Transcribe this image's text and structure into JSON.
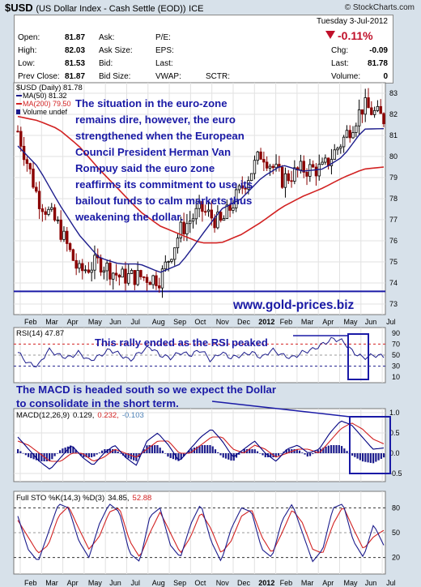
{
  "header": {
    "symbol": "$USD",
    "description": "(US Dollar Index - Cash Settle (EOD))",
    "exchange": "ICE",
    "brand": "© StockCharts.com",
    "date": "Tuesday 3-Jul-2012",
    "change_pct": "-0.11%",
    "quote_labels": {
      "open": "Open:",
      "high": "High:",
      "low": "Low:",
      "prev_close": "Prev Close:",
      "ask": "Ask:",
      "ask_size": "Ask Size:",
      "bid": "Bid:",
      "bid_size": "Bid Size:",
      "pe": "P/E:",
      "eps": "EPS:",
      "last_l": "Last:",
      "vwap": "VWAP:",
      "sctr": "SCTR:",
      "chg": "Chg:",
      "last_r": "Last:",
      "volume": "Volume:"
    },
    "quote_values": {
      "open": "81.87",
      "high": "82.03",
      "low": "81.53",
      "prev_close": "81.87",
      "chg": "-0.09",
      "last": "81.78",
      "volume": "0"
    }
  },
  "legend": {
    "main": "$USD (Daily) 81.78",
    "ma50": "MA(50) 81.32",
    "ma200": "MA(200) 79.50",
    "volume": "Volume undef",
    "rsi": "RSI(14) 47.87",
    "macd_label": "MACD(12,26,9)",
    "macd_v1": "0.129,",
    "macd_v2": "0.232,",
    "macd_v3": "-0.103",
    "sto_label": "Full STO %K(14,3) %D(3)",
    "sto_v1": "34.85,",
    "sto_v2": "52.88"
  },
  "annotations": {
    "main_text": [
      "The situation in the euro-zone",
      "remains dire, however, the euro",
      "strengthened when the European",
      "Council President Herman Van",
      "Rompuy said the euro zone",
      "reaffirms its commitment to use its",
      "bailout funds to calm markets thus",
      "weakening the dollar."
    ],
    "website": "www.gold-prices.biz",
    "rsi_note": "This rally ended as the RSI peaked",
    "macd_note": [
      "The MACD is headed south so we expect the Dollar",
      "to consolidate in the short term."
    ]
  },
  "axes": {
    "months": [
      "Feb",
      "Mar",
      "Apr",
      "May",
      "Jun",
      "Jul",
      "Aug",
      "Sep",
      "Oct",
      "Nov",
      "Dec",
      "2012",
      "Feb",
      "Mar",
      "Apr",
      "May",
      "Jun",
      "Jul"
    ],
    "price_ticks": [
      "83",
      "82",
      "81",
      "80",
      "79",
      "78",
      "77",
      "76",
      "75",
      "74",
      "73"
    ],
    "rsi_ticks": [
      "90",
      "70",
      "50",
      "30",
      "10"
    ],
    "macd_ticks": [
      "1.0",
      "0.5",
      "0.0",
      "-0.5"
    ],
    "sto_ticks": [
      "80",
      "50",
      "20"
    ]
  },
  "colors": {
    "bg_panel": "#ffffff",
    "frame": "#d7e1ea",
    "bull": "#000000",
    "bear": "#8b0000",
    "ma50": "#1c1c8c",
    "ma200": "#d22222",
    "annotation": "#1a1aa6",
    "rsi_line": "#1c1c8c",
    "macd_line": "#000080",
    "signal_line": "#d22222",
    "hist": "#1c1c8c",
    "sto_k": "#1c1c8c",
    "sto_d": "#d22222",
    "change_down": "#c0102a"
  },
  "chart_data": [
    {
      "type": "candlestick",
      "title": "$USD (Daily) 81.78",
      "x": [
        "2011-01",
        "2011-02",
        "2011-03",
        "2011-04",
        "2011-05",
        "2011-06",
        "2011-07",
        "2011-08",
        "2011-09",
        "2011-10",
        "2011-11",
        "2011-12",
        "2012-01",
        "2012-02",
        "2012-03",
        "2012-04",
        "2012-05",
        "2012-06",
        "2012-07"
      ],
      "series": [
        {
          "name": "$USD",
          "values": [
            81.2,
            78.0,
            76.7,
            74.5,
            75.0,
            74.3,
            74.3,
            74.2,
            76.5,
            77.5,
            76.8,
            78.5,
            80.2,
            78.9,
            79.4,
            79.4,
            80.8,
            82.4,
            81.78
          ]
        },
        {
          "name": "MA(50)",
          "values": [
            80.5,
            79.5,
            77.8,
            76.3,
            75.2,
            74.9,
            74.9,
            74.5,
            74.9,
            76.2,
            77.5,
            78.0,
            79.0,
            79.6,
            79.3,
            79.4,
            80.0,
            81.3,
            81.32
          ]
        },
        {
          "name": "MA(200)",
          "values": [
            81.9,
            81.7,
            81.3,
            80.5,
            79.4,
            78.4,
            77.4,
            76.7,
            76.3,
            75.9,
            75.9,
            76.3,
            76.9,
            77.6,
            78.1,
            78.5,
            79.0,
            79.4,
            79.5
          ]
        }
      ],
      "ylim": [
        72.5,
        83.5
      ]
    },
    {
      "type": "line",
      "title": "RSI(14) 47.87",
      "series": [
        {
          "name": "RSI(14)",
          "values": [
            55,
            35,
            30,
            60,
            50,
            45,
            55,
            40,
            48,
            60,
            52,
            40,
            55,
            65,
            50,
            45,
            55,
            50,
            60,
            40,
            55,
            45,
            50,
            55,
            45,
            60,
            50,
            45,
            55,
            60,
            70,
            80,
            75,
            55,
            45,
            50,
            47.87
          ]
        }
      ],
      "ylim": [
        0,
        100
      ]
    },
    {
      "type": "line",
      "title": "MACD(12,26,9) 0.129, 0.232, -0.103",
      "series": [
        {
          "name": "MACD",
          "values": [
            0.4,
            0.1,
            -0.2,
            -0.4,
            -0.1,
            0.2,
            -0.1,
            -0.3,
            0.0,
            0.2,
            -0.1,
            -0.3,
            0.3,
            0.5,
            0.2,
            -0.2,
            0.1,
            0.4,
            0.6,
            0.3,
            -0.1,
            0.1,
            0.3,
            0.0,
            -0.2,
            0.1,
            0.2,
            0.0,
            0.1,
            0.5,
            0.8,
            0.7,
            0.4,
            0.1,
            0.129
          ]
        },
        {
          "name": "Signal",
          "values": [
            0.3,
            0.2,
            0.0,
            -0.2,
            -0.2,
            0.0,
            0.0,
            -0.2,
            -0.1,
            0.1,
            0.0,
            -0.1,
            0.1,
            0.3,
            0.3,
            0.0,
            0.0,
            0.2,
            0.4,
            0.4,
            0.1,
            0.0,
            0.2,
            0.1,
            -0.1,
            0.0,
            0.1,
            0.1,
            0.0,
            0.3,
            0.6,
            0.75,
            0.6,
            0.35,
            0.232
          ]
        }
      ],
      "ylim": [
        -0.7,
        1.1
      ]
    },
    {
      "type": "line",
      "title": "Full STO %K(14,3) %D(3) 34.85, 52.88",
      "series": [
        {
          "name": "%K",
          "values": [
            70,
            30,
            15,
            50,
            85,
            80,
            40,
            20,
            60,
            85,
            75,
            25,
            15,
            70,
            80,
            35,
            20,
            60,
            85,
            40,
            15,
            55,
            80,
            75,
            30,
            20,
            65,
            85,
            50,
            15,
            30,
            80,
            85,
            40,
            20,
            60,
            34.85
          ]
        },
        {
          "name": "%D",
          "values": [
            65,
            45,
            25,
            35,
            70,
            82,
            55,
            30,
            45,
            75,
            80,
            40,
            20,
            50,
            75,
            50,
            25,
            45,
            75,
            55,
            25,
            40,
            70,
            78,
            45,
            25,
            50,
            78,
            62,
            30,
            25,
            60,
            82,
            55,
            30,
            45,
            52.88
          ]
        }
      ],
      "ylim": [
        0,
        100
      ]
    }
  ]
}
